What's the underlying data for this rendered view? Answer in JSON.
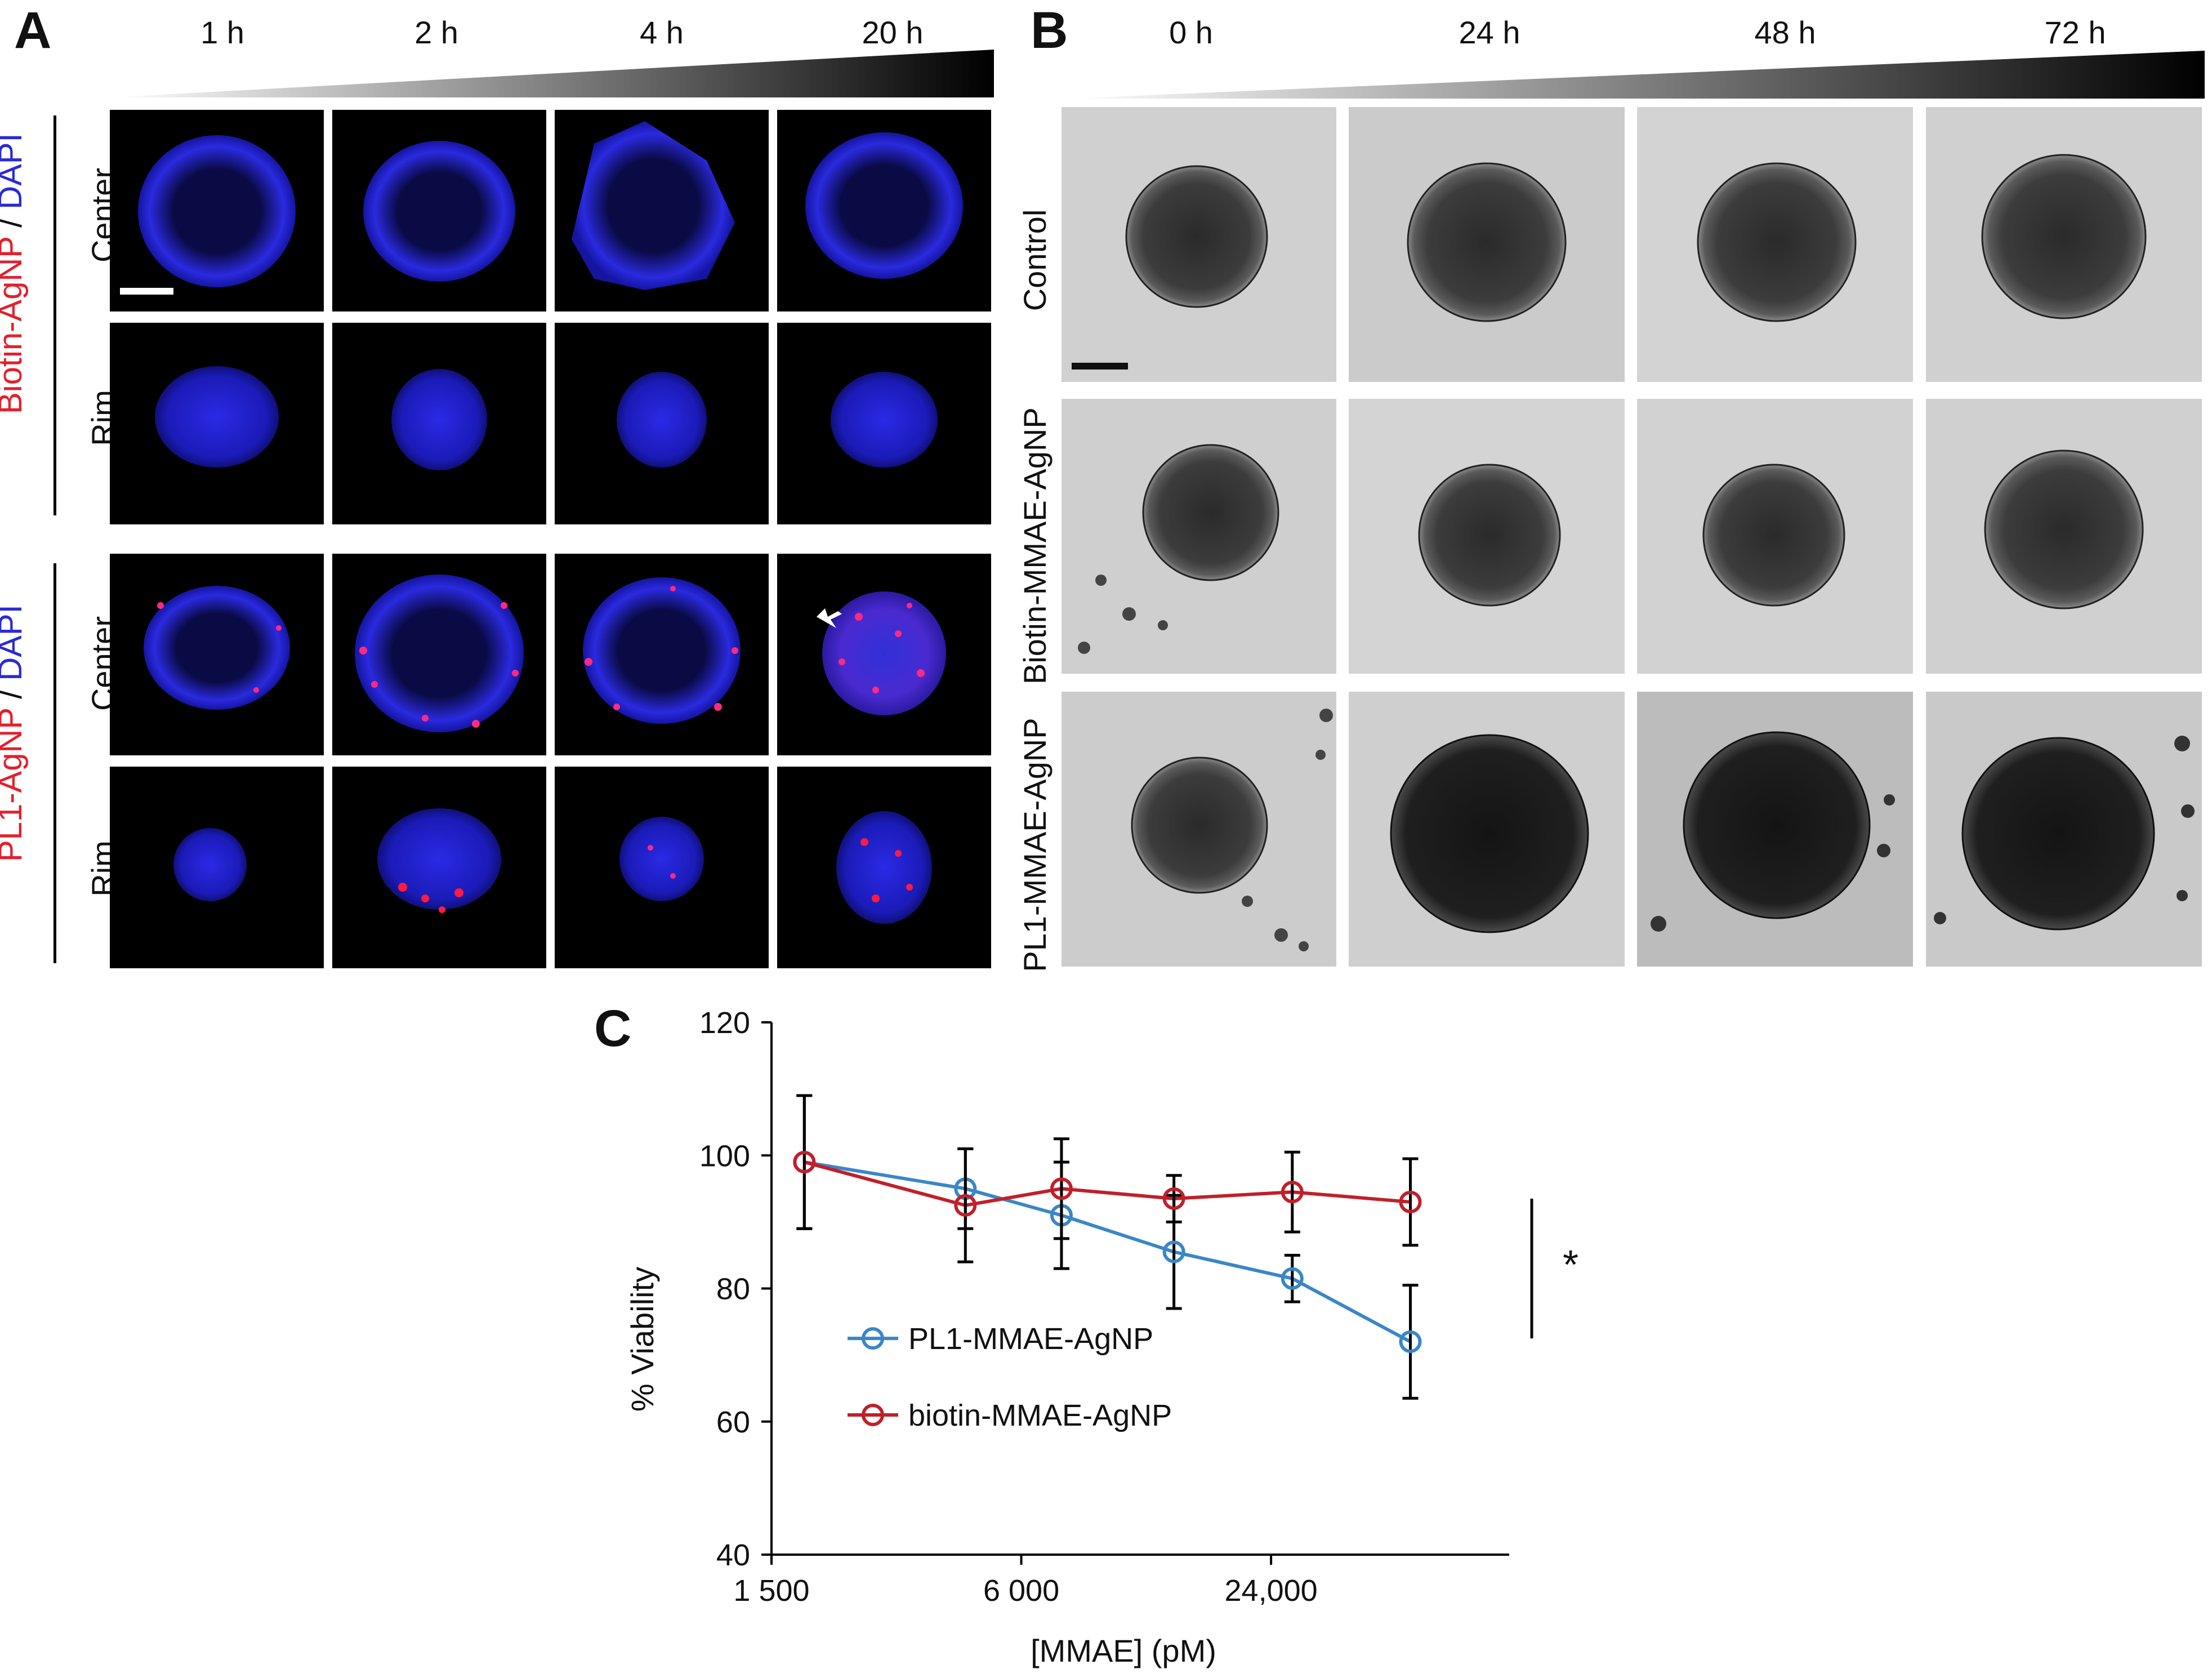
{
  "panelA": {
    "letter": "A",
    "times": [
      "1 h",
      "2 h",
      "4 h",
      "20 h"
    ],
    "group1": {
      "label_red": "Biotin-AgNP",
      "label_sep": " / ",
      "label_blue": "DAPI",
      "rows": [
        "Center",
        "Rim"
      ]
    },
    "group2": {
      "label_red": "PL1-AgNP",
      "label_sep": " / ",
      "label_blue": "DAPI",
      "rows": [
        "Center",
        "Rim"
      ]
    }
  },
  "panelB": {
    "letter": "B",
    "times": [
      "0 h",
      "24 h",
      "48 h",
      "72 h"
    ],
    "rows": [
      "Control",
      "Biotin-MMAE-AgNP",
      "PL1-MMAE-AgNP"
    ]
  },
  "panelC": {
    "letter": "C",
    "significance": "*"
  },
  "chart_data": {
    "type": "line",
    "xlabel": "[MMAE] (pM)",
    "ylabel": "% Viability",
    "xscale": "log",
    "xtick_labels": [
      "1 500",
      "6 000",
      "24,000"
    ],
    "xticks": [
      1500,
      6000,
      24000
    ],
    "xlim": [
      1500,
      90000
    ],
    "ylim": [
      40,
      120
    ],
    "yticks": [
      40,
      60,
      80,
      100,
      120
    ],
    "x": [
      1800,
      4400,
      7500,
      14000,
      27000,
      52000
    ],
    "legend_position": "inside-left",
    "series": [
      {
        "name": "PL1-MMAE-AgNP",
        "color": "#3a86c8",
        "values": [
          99,
          95,
          91,
          85.5,
          81.5,
          72
        ],
        "errors": [
          10,
          6,
          8,
          8.5,
          3.5,
          8.5
        ]
      },
      {
        "name": "biotin-MMAE-AgNP",
        "color": "#c0202a",
        "values": [
          99,
          92.5,
          95,
          93.5,
          94.5,
          93
        ],
        "errors": [
          10,
          8.5,
          7.5,
          3.5,
          6,
          6.5
        ]
      }
    ]
  }
}
